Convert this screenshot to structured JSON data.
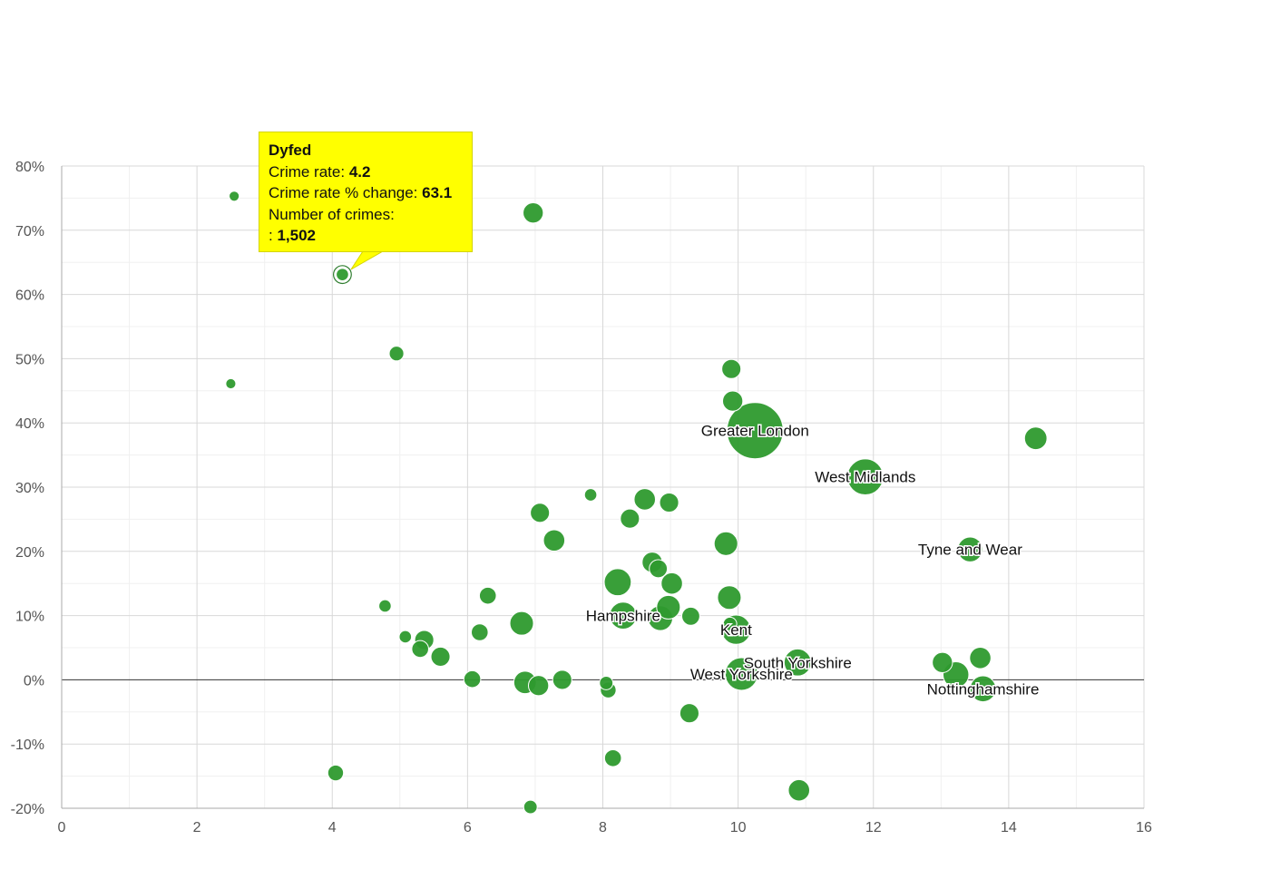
{
  "chart_data": {
    "type": "scatter",
    "title": "",
    "xlabel": "",
    "ylabel": "",
    "xlim": [
      0,
      16
    ],
    "ylim": [
      -20,
      80
    ],
    "x_ticks": [
      0,
      2,
      4,
      6,
      8,
      10,
      12,
      14,
      16
    ],
    "y_ticks": [
      -20,
      -10,
      0,
      10,
      20,
      30,
      40,
      50,
      60,
      70,
      80
    ],
    "y_tick_suffix": "%",
    "grid": true,
    "bubble_color": "#2e9a2e",
    "points": [
      {
        "x": 2.55,
        "y": 75.3,
        "size": 0.9
      },
      {
        "x": 6.97,
        "y": 72.7,
        "size": 1.8
      },
      {
        "x": 4.15,
        "y": 63.1,
        "size": 1.1,
        "label": "Dyfed",
        "highlight": true
      },
      {
        "x": 4.95,
        "y": 50.8,
        "size": 1.3
      },
      {
        "x": 2.5,
        "y": 46.1,
        "size": 0.9
      },
      {
        "x": 9.9,
        "y": 48.4,
        "size": 1.7
      },
      {
        "x": 9.92,
        "y": 43.4,
        "size": 1.8
      },
      {
        "x": 10.25,
        "y": 38.8,
        "size": 5.0,
        "label": "Greater London"
      },
      {
        "x": 14.4,
        "y": 37.6,
        "size": 2.0
      },
      {
        "x": 11.88,
        "y": 31.6,
        "size": 3.2,
        "label": "West Midlands"
      },
      {
        "x": 7.82,
        "y": 28.8,
        "size": 1.1
      },
      {
        "x": 8.62,
        "y": 28.1,
        "size": 1.9
      },
      {
        "x": 8.98,
        "y": 27.6,
        "size": 1.7
      },
      {
        "x": 7.07,
        "y": 26.0,
        "size": 1.7
      },
      {
        "x": 8.4,
        "y": 25.1,
        "size": 1.7
      },
      {
        "x": 7.28,
        "y": 21.7,
        "size": 1.9
      },
      {
        "x": 9.82,
        "y": 21.2,
        "size": 2.1
      },
      {
        "x": 13.43,
        "y": 20.3,
        "size": 2.2,
        "label": "Tyne and Wear"
      },
      {
        "x": 8.73,
        "y": 18.3,
        "size": 1.8
      },
      {
        "x": 8.82,
        "y": 17.3,
        "size": 1.6
      },
      {
        "x": 8.22,
        "y": 15.2,
        "size": 2.4
      },
      {
        "x": 9.02,
        "y": 15.0,
        "size": 1.9
      },
      {
        "x": 6.3,
        "y": 13.1,
        "size": 1.5
      },
      {
        "x": 9.87,
        "y": 12.8,
        "size": 2.1
      },
      {
        "x": 4.78,
        "y": 11.5,
        "size": 1.1
      },
      {
        "x": 8.97,
        "y": 11.3,
        "size": 2.1
      },
      {
        "x": 8.3,
        "y": 10.0,
        "size": 2.4,
        "label": "Hampshire"
      },
      {
        "x": 9.3,
        "y": 9.9,
        "size": 1.6
      },
      {
        "x": 8.85,
        "y": 9.6,
        "size": 2.2
      },
      {
        "x": 6.8,
        "y": 8.8,
        "size": 2.1
      },
      {
        "x": 9.88,
        "y": 8.7,
        "size": 1.2
      },
      {
        "x": 9.97,
        "y": 7.8,
        "size": 2.6,
        "label": "Kent"
      },
      {
        "x": 6.18,
        "y": 7.4,
        "size": 1.5
      },
      {
        "x": 5.08,
        "y": 6.7,
        "size": 1.1
      },
      {
        "x": 5.36,
        "y": 6.2,
        "size": 1.7
      },
      {
        "x": 5.3,
        "y": 4.8,
        "size": 1.5
      },
      {
        "x": 5.6,
        "y": 3.6,
        "size": 1.7
      },
      {
        "x": 13.58,
        "y": 3.4,
        "size": 1.9
      },
      {
        "x": 10.88,
        "y": 2.7,
        "size": 2.4,
        "label": "South Yorkshire"
      },
      {
        "x": 13.02,
        "y": 2.7,
        "size": 1.8
      },
      {
        "x": 10.05,
        "y": 0.9,
        "size": 2.9,
        "label": "West Yorkshire"
      },
      {
        "x": 13.22,
        "y": 0.8,
        "size": 2.3
      },
      {
        "x": 6.07,
        "y": 0.1,
        "size": 1.5
      },
      {
        "x": 7.4,
        "y": 0.0,
        "size": 1.7
      },
      {
        "x": 6.85,
        "y": -0.4,
        "size": 2.0
      },
      {
        "x": 8.05,
        "y": -0.5,
        "size": 1.2
      },
      {
        "x": 7.05,
        "y": -0.9,
        "size": 1.8
      },
      {
        "x": 13.62,
        "y": -1.4,
        "size": 2.3,
        "label": "Nottinghamshire"
      },
      {
        "x": 8.08,
        "y": -1.6,
        "size": 1.4
      },
      {
        "x": 9.28,
        "y": -5.2,
        "size": 1.7
      },
      {
        "x": 8.15,
        "y": -12.2,
        "size": 1.5
      },
      {
        "x": 4.05,
        "y": -14.5,
        "size": 1.4
      },
      {
        "x": 10.9,
        "y": -17.2,
        "size": 1.9
      },
      {
        "x": 6.93,
        "y": -19.8,
        "size": 1.2
      }
    ]
  },
  "tooltip": {
    "title": "Dyfed",
    "crime_rate_label": "Crime rate:",
    "crime_rate_value": "4.2",
    "change_label": "Crime rate % change:",
    "change_value": "63.1",
    "crimes_label": "Number of crimes:",
    "crimes_prefix": ":",
    "crimes_value": "1,502"
  }
}
